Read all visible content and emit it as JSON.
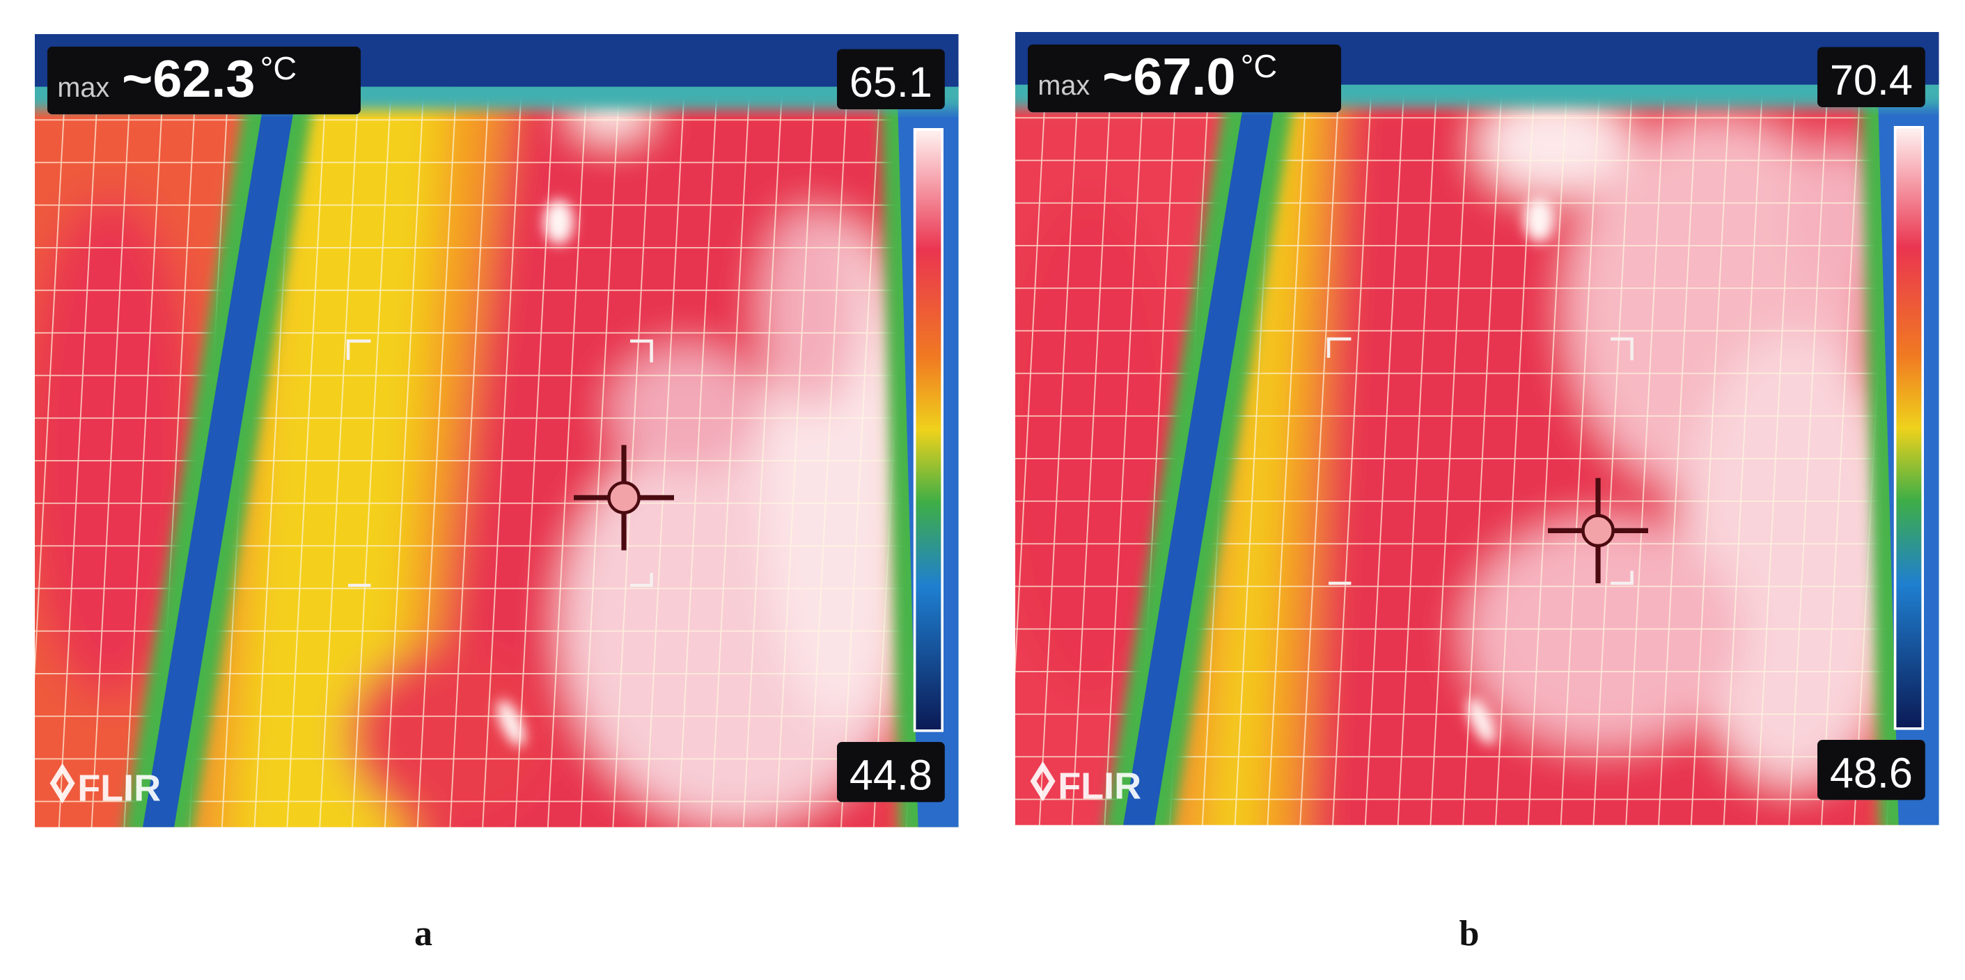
{
  "panels": [
    {
      "label": "a",
      "max_label": "max",
      "max_value": "~62.3",
      "unit": "°C",
      "scale_max": "65.1",
      "scale_min": "44.8",
      "logo": "FLIR"
    },
    {
      "label": "b",
      "max_label": "max",
      "max_value": "~67.0",
      "unit": "°C",
      "scale_max": "70.4",
      "scale_min": "48.6",
      "logo": "FLIR"
    }
  ]
}
